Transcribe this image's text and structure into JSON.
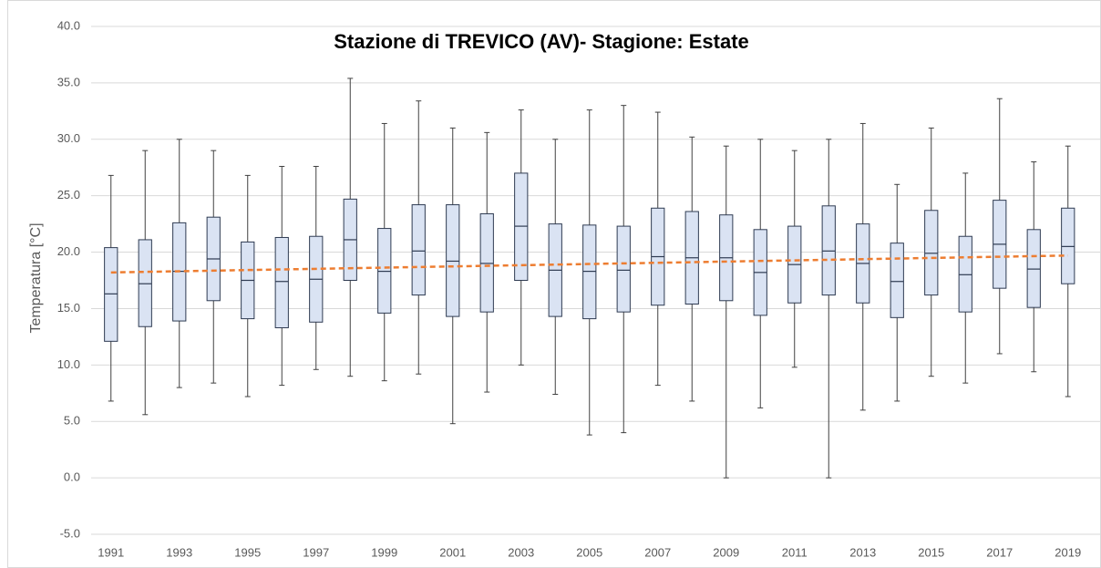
{
  "chart_data": {
    "type": "box",
    "title": "Stazione di TREVICO (AV)- Stagione: Estate",
    "y_label": "Temperatura [°C]",
    "categories": [
      "1991",
      null,
      "1993",
      null,
      "1995",
      null,
      "1997",
      null,
      "1999",
      null,
      "2001",
      null,
      "2003",
      null,
      "2005",
      null,
      "2007",
      null,
      "2009",
      null,
      "2011",
      null,
      "2013",
      null,
      "2015",
      null,
      "2017",
      null,
      "2019"
    ],
    "boxes": [
      {
        "min": 6.8,
        "q1": 12.1,
        "median": 16.3,
        "q3": 20.4,
        "max": 26.8
      },
      {
        "min": 5.6,
        "q1": 13.4,
        "median": 17.2,
        "q3": 21.1,
        "max": 29.0
      },
      {
        "min": 8.0,
        "q1": 13.9,
        "median": 18.3,
        "q3": 22.6,
        "max": 30.0
      },
      {
        "min": 8.4,
        "q1": 15.7,
        "median": 19.4,
        "q3": 23.1,
        "max": 29.0
      },
      {
        "min": 7.2,
        "q1": 14.1,
        "median": 17.5,
        "q3": 20.9,
        "max": 26.8
      },
      {
        "min": 8.2,
        "q1": 13.3,
        "median": 17.4,
        "q3": 21.3,
        "max": 27.6
      },
      {
        "min": 9.6,
        "q1": 13.8,
        "median": 17.6,
        "q3": 21.4,
        "max": 27.6
      },
      {
        "min": 9.0,
        "q1": 17.5,
        "median": 21.1,
        "q3": 24.7,
        "max": 35.4
      },
      {
        "min": 8.6,
        "q1": 14.6,
        "median": 18.3,
        "q3": 22.1,
        "max": 31.4
      },
      {
        "min": 9.2,
        "q1": 16.2,
        "median": 20.1,
        "q3": 24.2,
        "max": 33.4
      },
      {
        "min": 4.8,
        "q1": 14.3,
        "median": 19.2,
        "q3": 24.2,
        "max": 31.0
      },
      {
        "min": 7.6,
        "q1": 14.7,
        "median": 19.0,
        "q3": 23.4,
        "max": 30.6
      },
      {
        "min": 10.0,
        "q1": 17.5,
        "median": 22.3,
        "q3": 27.0,
        "max": 32.6
      },
      {
        "min": 7.4,
        "q1": 14.3,
        "median": 18.4,
        "q3": 22.5,
        "max": 30.0
      },
      {
        "min": 3.8,
        "q1": 14.1,
        "median": 18.3,
        "q3": 22.4,
        "max": 32.6
      },
      {
        "min": 4.0,
        "q1": 14.7,
        "median": 18.4,
        "q3": 22.3,
        "max": 33.0
      },
      {
        "min": 8.2,
        "q1": 15.3,
        "median": 19.6,
        "q3": 23.9,
        "max": 32.4
      },
      {
        "min": 6.8,
        "q1": 15.4,
        "median": 19.5,
        "q3": 23.6,
        "max": 30.2
      },
      {
        "min": 0.0,
        "q1": 15.7,
        "median": 19.5,
        "q3": 23.3,
        "max": 29.4
      },
      {
        "min": 6.2,
        "q1": 14.4,
        "median": 18.2,
        "q3": 22.0,
        "max": 30.0
      },
      {
        "min": 9.8,
        "q1": 15.5,
        "median": 18.9,
        "q3": 22.3,
        "max": 29.0
      },
      {
        "min": 0.0,
        "q1": 16.2,
        "median": 20.1,
        "q3": 24.1,
        "max": 30.0
      },
      {
        "min": 6.0,
        "q1": 15.5,
        "median": 19.0,
        "q3": 22.5,
        "max": 31.4
      },
      {
        "min": 6.8,
        "q1": 14.2,
        "median": 17.4,
        "q3": 20.8,
        "max": 26.0
      },
      {
        "min": 9.0,
        "q1": 16.2,
        "median": 19.9,
        "q3": 23.7,
        "max": 31.0
      },
      {
        "min": 8.4,
        "q1": 14.7,
        "median": 18.0,
        "q3": 21.4,
        "max": 27.0
      },
      {
        "min": 11.0,
        "q1": 16.8,
        "median": 20.7,
        "q3": 24.6,
        "max": 33.6
      },
      {
        "min": 9.4,
        "q1": 15.1,
        "median": 18.5,
        "q3": 22.0,
        "max": 28.0
      },
      {
        "min": 7.2,
        "q1": 17.2,
        "median": 20.5,
        "q3": 23.9,
        "max": 29.4
      }
    ],
    "box_color": "#dae3f3",
    "trend": {
      "color": "#ed7d31",
      "values": [
        18.2,
        19.7
      ]
    },
    "ylim": [
      -5,
      40
    ],
    "yticks": [
      {
        "value": -5,
        "label": "-5.0"
      },
      {
        "value": 0,
        "label": "0.0"
      },
      {
        "value": 5,
        "label": "5.0"
      },
      {
        "value": 10,
        "label": "10.0"
      },
      {
        "value": 15,
        "label": "15.0"
      },
      {
        "value": 20,
        "label": "20.0"
      },
      {
        "value": 25,
        "label": "25.0"
      },
      {
        "value": 30,
        "label": "30.0"
      },
      {
        "value": 35,
        "label": "35.0"
      },
      {
        "value": 40,
        "label": "40.0"
      }
    ],
    "grid": true
  }
}
